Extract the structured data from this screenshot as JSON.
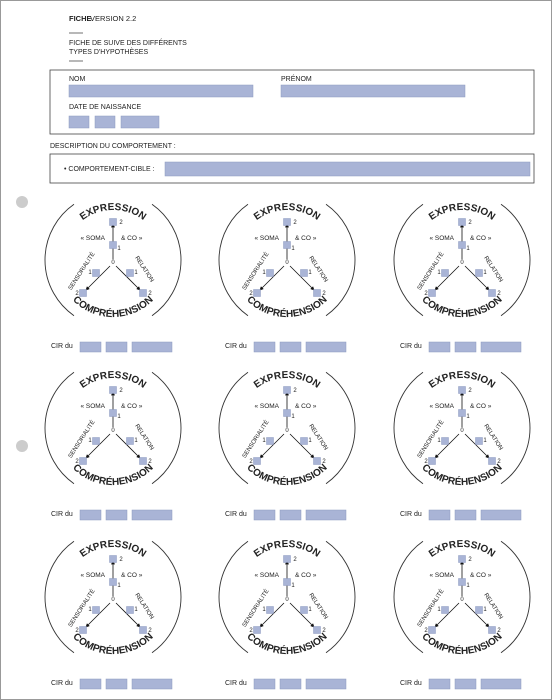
{
  "header": {
    "label": "FICHE",
    "version": "VERSION 2.2",
    "title_lines": [
      "FICHE DE SUIVE DES DIFFÉRENTS",
      "TYPES D'HYPOTHÈSES"
    ]
  },
  "identity": {
    "last_name": "NOM",
    "first_name": "PRÉNOM",
    "birth_date": "DATE DE NAISSANCE"
  },
  "behavior": {
    "description": "DESCRIPTION DU COMPORTEMENT :",
    "target": "• COMPORTEMENT-CIBLE :"
  },
  "diagram": {
    "top": "EXPRESSION",
    "bottom": "COMPRÉHENSION",
    "left": "« SOMA",
    "right": "& CO »",
    "left_axis": "SENSORIALITÉ",
    "right_axis": "RELATION",
    "levels": [
      0,
      1,
      2
    ]
  },
  "cir_label": "CIR du"
}
